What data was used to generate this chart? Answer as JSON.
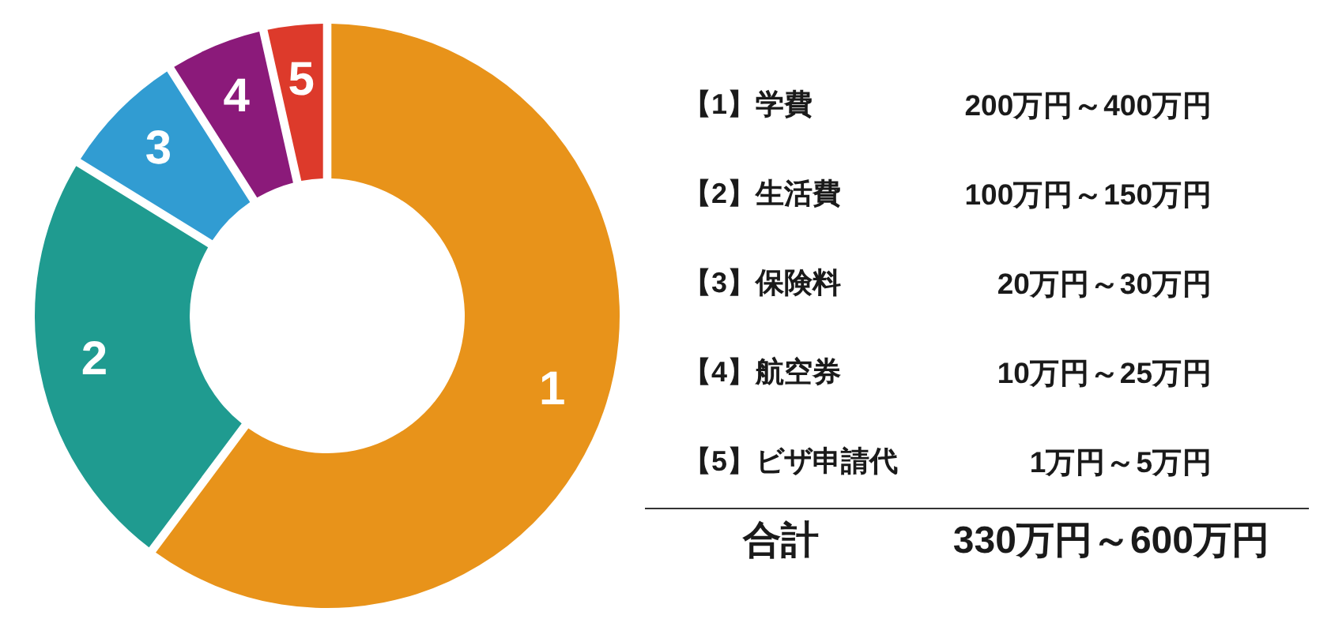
{
  "chart_data": {
    "type": "donut",
    "categories": [
      "1",
      "2",
      "3",
      "4",
      "5"
    ],
    "values": [
      60.2,
      23.6,
      7.2,
      5.5,
      3.5
    ],
    "colors": [
      "#e8931a",
      "#1f9b90",
      "#319cd2",
      "#8b1a7a",
      "#dd3a2b"
    ],
    "annotations": [
      "【1】学費",
      "200万円～400万円",
      "【2】生活費",
      "100万円～150万円",
      "【3】保険料",
      "20万円～30万円",
      "【4】航空券",
      "10万円～25万円",
      "【5】ビザ申請代",
      "1万円～5万円",
      "合計",
      "330万円～600万円"
    ]
  }
}
